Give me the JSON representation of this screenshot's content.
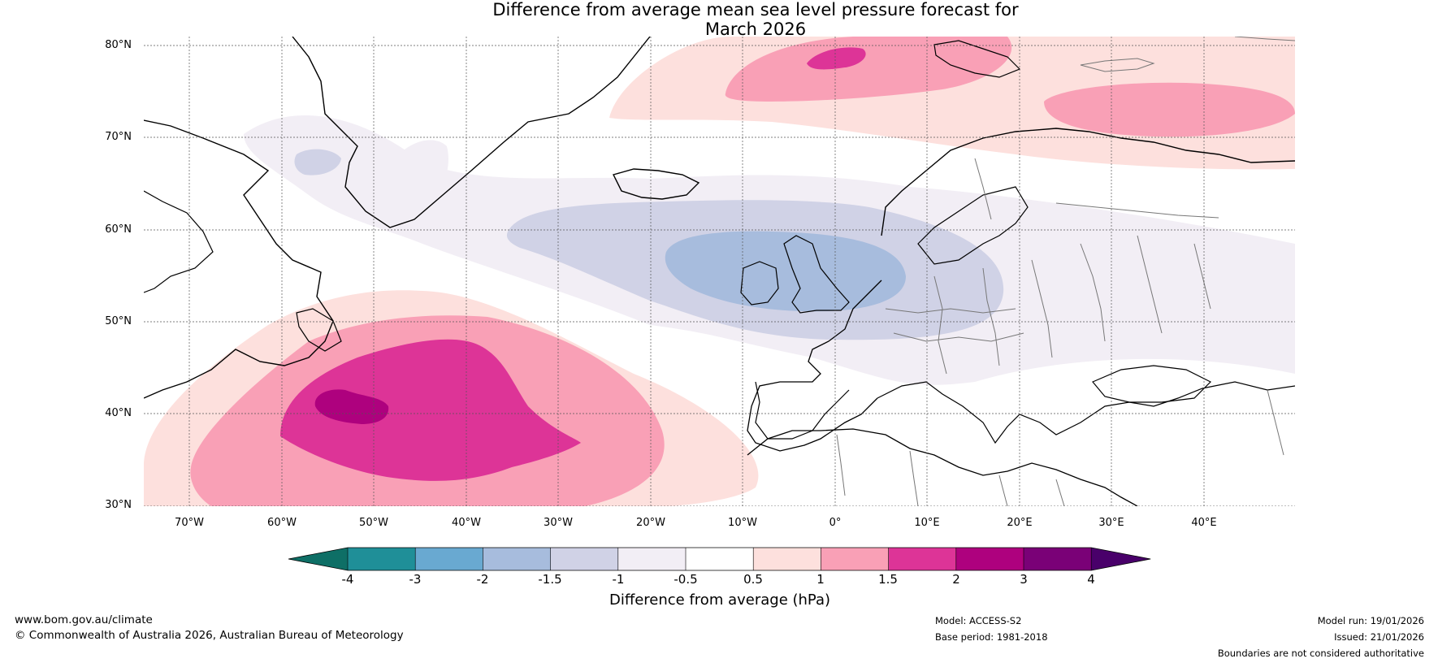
{
  "title": {
    "line1": "Difference from average mean sea level pressure forecast for",
    "line2": "March 2026"
  },
  "map": {
    "region": "North Atlantic and Europe",
    "lon_range": [
      -75,
      50
    ],
    "lat_range": [
      30,
      81
    ],
    "lat_ticks": [
      "80°N",
      "70°N",
      "60°N",
      "50°N",
      "40°N",
      "30°N"
    ],
    "lon_ticks": [
      "70°W",
      "60°W",
      "50°W",
      "40°W",
      "30°W",
      "20°W",
      "10°W",
      "0°",
      "10°E",
      "20°E",
      "30°E",
      "40°E"
    ]
  },
  "colorbar": {
    "title": "Difference from average (hPa)",
    "tick_labels": [
      "-4",
      "-3",
      "-2",
      "-1.5",
      "-1",
      "-0.5",
      "0.5",
      "1",
      "1.5",
      "2",
      "3",
      "4"
    ],
    "colors": [
      "#0e6f66",
      "#1f8f98",
      "#69a9d1",
      "#a7bcdd",
      "#d0d2e6",
      "#f2eef5",
      "#ffffff",
      "#fde0dd",
      "#f9a0b6",
      "#dd3497",
      "#ae017e",
      "#7a0177",
      "#49006a"
    ]
  },
  "footer": {
    "website": "www.bom.gov.au/climate",
    "copyright": "© Commonwealth of Australia 2026, Australian Bureau of Meteorology",
    "model": "Model: ACCESS-S2",
    "base_period": "Base period: 1981-2018",
    "model_run": "Model run: 19/01/2026",
    "issued": "Issued: 21/01/2026",
    "disclaimer": "Boundaries are not considered authoritative"
  }
}
